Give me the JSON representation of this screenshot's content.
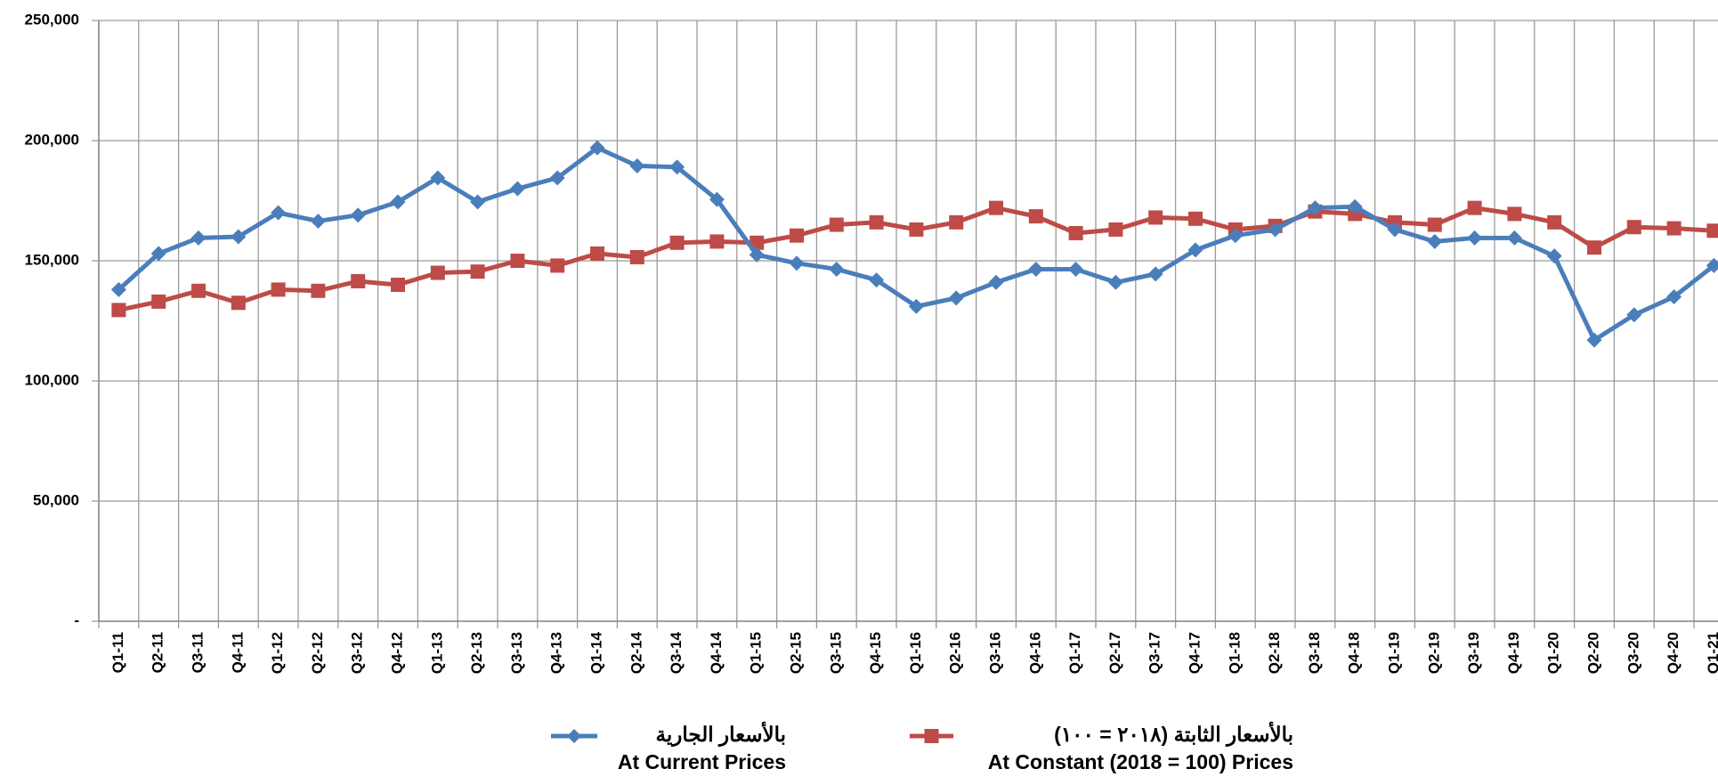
{
  "chart_data": {
    "type": "line",
    "categories": [
      "Q1-11",
      "Q2-11",
      "Q3-11",
      "Q4-11",
      "Q1-12",
      "Q2-12",
      "Q3-12",
      "Q4-12",
      "Q1-13",
      "Q2-13",
      "Q3-13",
      "Q4-13",
      "Q1-14",
      "Q2-14",
      "Q3-14",
      "Q4-14",
      "Q1-15",
      "Q2-15",
      "Q3-15",
      "Q4-15",
      "Q1-16",
      "Q2-16",
      "Q3-16",
      "Q4-16",
      "Q1-17",
      "Q2-17",
      "Q3-17",
      "Q4-17",
      "Q1-18",
      "Q2-18",
      "Q3-18",
      "Q4-18",
      "Q1-19",
      "Q2-19",
      "Q3-19",
      "Q4-19",
      "Q1-20",
      "Q2-20",
      "Q3-20",
      "Q4-20",
      "Q1-21"
    ],
    "series": [
      {
        "name": "At Current Prices",
        "name_ar": "بالأسعار الجارية",
        "color": "#4a7ebb",
        "marker": "diamond",
        "values": [
          138000,
          153000,
          159500,
          160000,
          170000,
          166500,
          169000,
          174500,
          184500,
          174500,
          180000,
          184500,
          197000,
          189500,
          189000,
          175500,
          152500,
          149000,
          146500,
          142000,
          131000,
          134500,
          141000,
          146500,
          146500,
          141000,
          144500,
          154500,
          160500,
          163000,
          172000,
          172500,
          163000,
          158000,
          159500,
          159500,
          152000,
          117000,
          127500,
          135000,
          148000
        ]
      },
      {
        "name": "At Constant (2018 = 100) Prices",
        "name_ar": "بالأسعار الثابتة (٢٠١٨ = ١٠٠)",
        "color": "#be4b48",
        "marker": "square",
        "values": [
          129500,
          133000,
          137500,
          132500,
          138000,
          137500,
          141500,
          140000,
          145000,
          145500,
          150000,
          148000,
          153000,
          151500,
          157500,
          158000,
          157500,
          160500,
          165000,
          166000,
          163000,
          166000,
          172000,
          168500,
          161500,
          163000,
          168000,
          167500,
          163000,
          164500,
          170500,
          169500,
          166000,
          165000,
          172000,
          169500,
          166000,
          155500,
          164000,
          163500,
          162500
        ]
      }
    ],
    "ylim": [
      0,
      250000
    ],
    "yticks": [
      {
        "value": 0,
        "label": "-"
      },
      {
        "value": 50000,
        "label": "50,000"
      },
      {
        "value": 100000,
        "label": "100,000"
      },
      {
        "value": 150000,
        "label": "150,000"
      },
      {
        "value": 200000,
        "label": "200,000"
      },
      {
        "value": 250000,
        "label": "250,000"
      }
    ],
    "grid": true
  }
}
